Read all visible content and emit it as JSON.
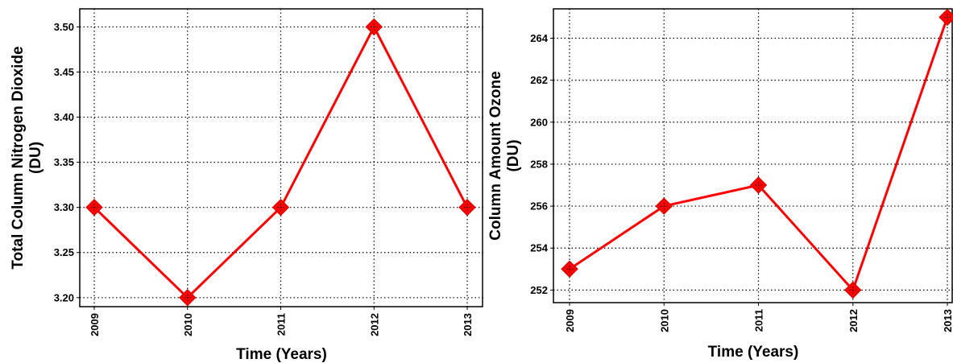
{
  "chart_data": [
    {
      "type": "line",
      "title": "",
      "xlabel": "Time (Years)",
      "ylabel": [
        "Total Column Nitrogen Dioxide",
        "(DU)"
      ],
      "categories": [
        "2009",
        "2010",
        "2011",
        "2012",
        "2013"
      ],
      "yticks": [
        "3.20",
        "3.25",
        "3.30",
        "3.35",
        "3.40",
        "3.45",
        "3.50"
      ],
      "ylim": [
        3.19,
        3.52
      ],
      "grid": true,
      "series": [
        {
          "values": [
            3.3,
            3.2,
            3.3,
            3.5,
            3.3
          ],
          "color": "#ff0000",
          "marker": "diamond"
        }
      ]
    },
    {
      "type": "line",
      "title": "",
      "xlabel": "Time (Years)",
      "ylabel": [
        "Column Amount Ozone",
        "(DU)"
      ],
      "categories": [
        "2009",
        "2010",
        "2011",
        "2012",
        "2013"
      ],
      "yticks": [
        "252",
        "254",
        "256",
        "258",
        "260",
        "262",
        "264"
      ],
      "ylim": [
        251.4,
        265.4
      ],
      "grid": true,
      "series": [
        {
          "values": [
            253,
            256,
            257,
            252,
            265
          ],
          "color": "#ff0000",
          "marker": "diamond"
        }
      ]
    }
  ]
}
